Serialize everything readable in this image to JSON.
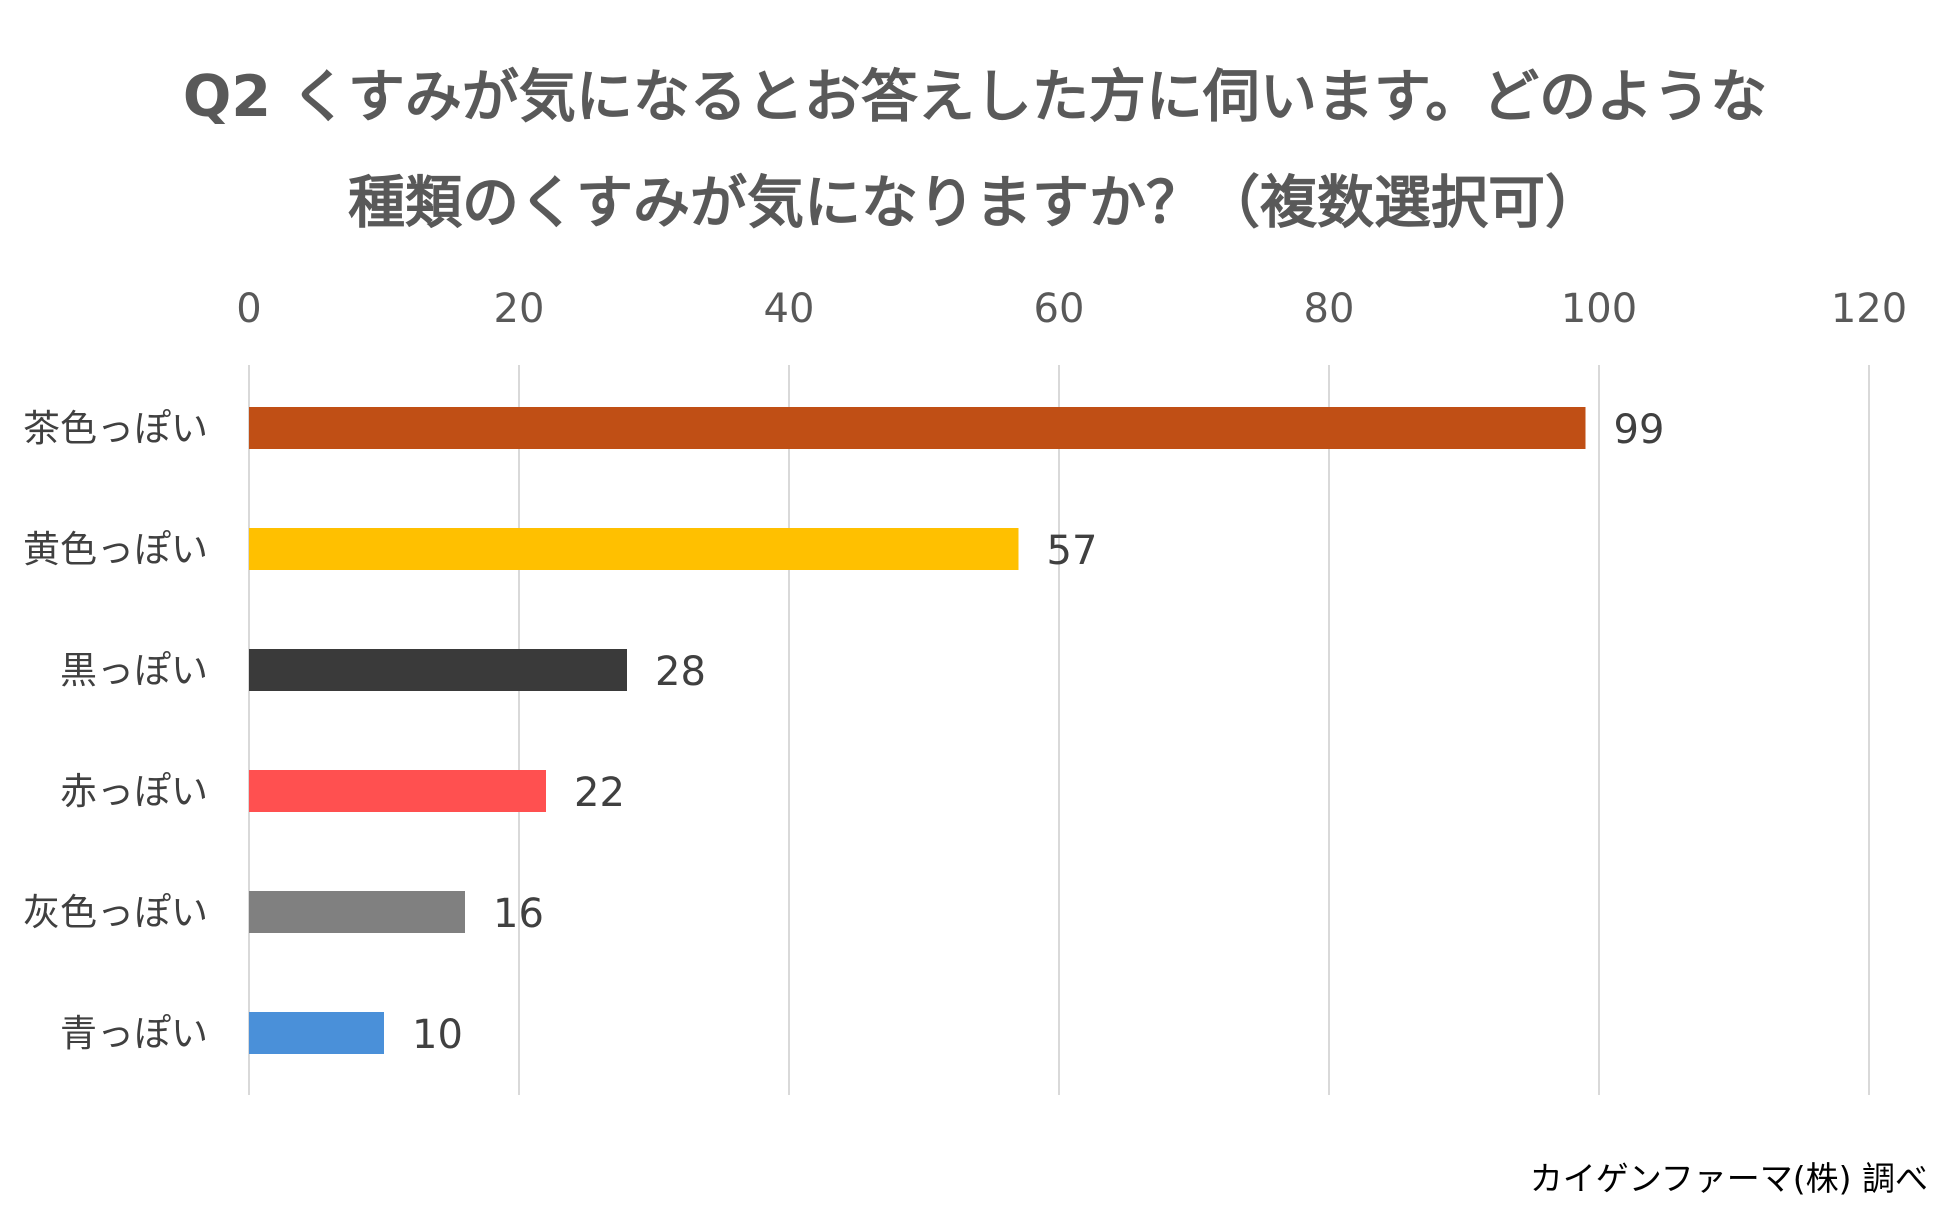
{
  "title_lines": [
    "Q2 くすみが気になるとお答えした方に伺います。どのような",
    "種類のくすみが気になりますか？（複数選択可）"
  ],
  "source": "カイゲンファーマ(株) 調べ",
  "chart_data": {
    "type": "bar",
    "orientation": "horizontal",
    "title": "Q2 くすみが気になるとお答えした方に伺います。どのような種類のくすみが気になりますか？（複数選択可）",
    "categories": [
      "茶色っぽい",
      "黄色っぽい",
      "黒っぽい",
      "赤っぽい",
      "灰色っぽい",
      "青っぽい"
    ],
    "values": [
      99,
      57,
      28,
      22,
      16,
      10
    ],
    "colors": [
      "#C04F15",
      "#FFC000",
      "#3A3A3A",
      "#FF5050",
      "#808080",
      "#4A90D9"
    ],
    "xlim": [
      0,
      120
    ],
    "xticks": [
      "0",
      "20",
      "40",
      "60",
      "80",
      "100",
      "120"
    ],
    "x_axis_position": "top",
    "grid": true,
    "data_labels": true,
    "legend": false
  }
}
